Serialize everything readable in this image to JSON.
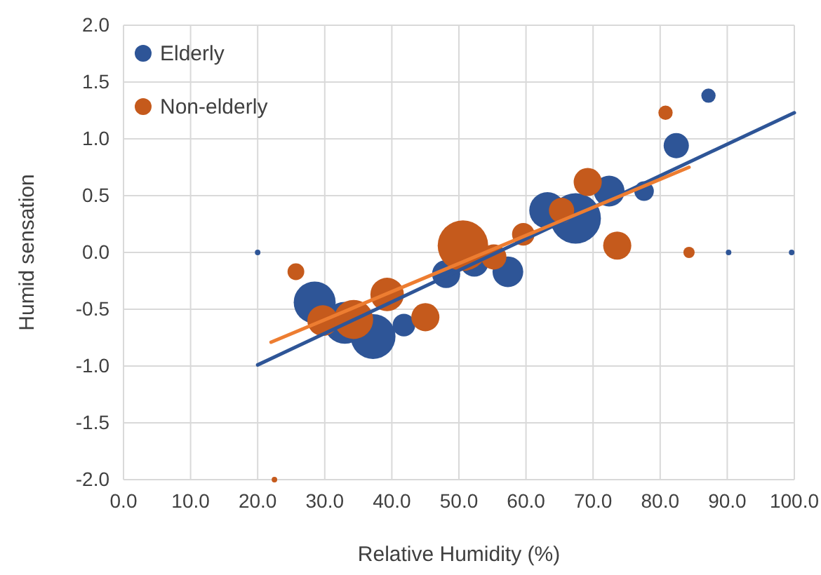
{
  "chart_data": {
    "type": "bubble",
    "xlabel": "Relative Humidity (%)",
    "ylabel": "Humid sensation",
    "xlim": [
      0,
      100
    ],
    "ylim": [
      -2,
      2
    ],
    "xticks": [
      {
        "value": 0,
        "label": "0.0"
      },
      {
        "value": 10,
        "label": "10.0"
      },
      {
        "value": 20,
        "label": "20.0"
      },
      {
        "value": 30,
        "label": "30.0"
      },
      {
        "value": 40,
        "label": "40.0"
      },
      {
        "value": 50,
        "label": "50.0"
      },
      {
        "value": 60,
        "label": "60.0"
      },
      {
        "value": 70,
        "label": "70.0"
      },
      {
        "value": 80,
        "label": "80.0"
      },
      {
        "value": 90,
        "label": "90.0"
      },
      {
        "value": 100,
        "label": "100.0"
      }
    ],
    "yticks": [
      {
        "value": -2,
        "label": "-2.0"
      },
      {
        "value": -1.5,
        "label": "-1.5"
      },
      {
        "value": -1,
        "label": "-1.0"
      },
      {
        "value": -0.5,
        "label": "-0.5"
      },
      {
        "value": 0,
        "label": "0.0"
      },
      {
        "value": 0.5,
        "label": "0.5"
      },
      {
        "value": 1,
        "label": "1.0"
      },
      {
        "value": 1.5,
        "label": "1.5"
      },
      {
        "value": 2,
        "label": "2.0"
      }
    ],
    "grid": true,
    "legend": "top left",
    "marker": "circle",
    "series": [
      {
        "name": "Elderly",
        "color": "#2e5597",
        "x": [
          20,
          28.5,
          33,
          37.2,
          41.8,
          48.1,
          52.3,
          57.3,
          63.2,
          67.4,
          72.4,
          77.6,
          82.4,
          87.2,
          90.2,
          99.6
        ],
        "values": [
          0,
          -0.44,
          -0.62,
          -0.74,
          -0.64,
          -0.19,
          -0.09,
          -0.17,
          0.37,
          0.3,
          0.54,
          0.54,
          0.94,
          1.38,
          0,
          0
        ],
        "sizes": [
          0.012,
          0.69,
          0.69,
          0.79,
          0.2,
          0.31,
          0.31,
          0.37,
          0.52,
          1,
          0.37,
          0.15,
          0.25,
          0.08,
          0.012,
          0.012
        ]
      },
      {
        "name": "Non-elderly",
        "color": "#c55a1c",
        "x": [
          22.5,
          25.7,
          29.7,
          34.3,
          39.3,
          45,
          50.6,
          55.2,
          59.6,
          65.3,
          69.2,
          73.6,
          80.8,
          84.3
        ],
        "values": [
          -2,
          -0.17,
          -0.6,
          -0.59,
          -0.37,
          -0.57,
          0.06,
          -0.04,
          0.16,
          0.37,
          0.62,
          0.06,
          1.23,
          0
        ],
        "sizes": [
          0.012,
          0.11,
          0.37,
          0.6,
          0.44,
          0.31,
          1,
          0.25,
          0.2,
          0.25,
          0.31,
          0.31,
          0.08,
          0.05
        ]
      },
      {
        "type": "line",
        "marker": "none",
        "color": "#2e5597",
        "x": [
          20,
          100
        ],
        "values": [
          -0.99,
          1.23
        ]
      },
      {
        "type": "line",
        "marker": "none",
        "color": "#ed7d31",
        "x": [
          22,
          84.3
        ],
        "values": [
          -0.79,
          0.75
        ]
      }
    ]
  }
}
